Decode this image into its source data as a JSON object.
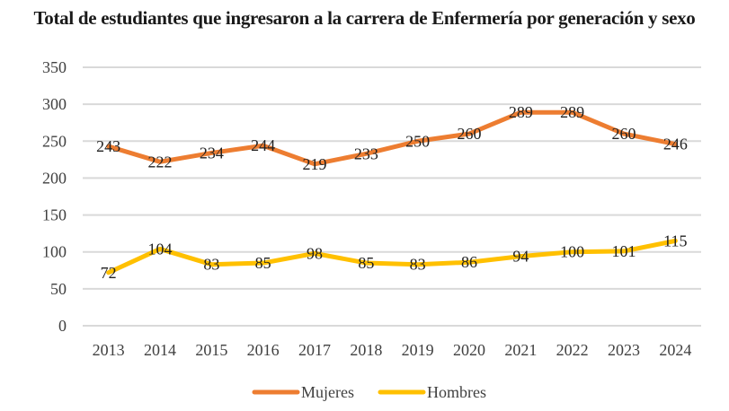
{
  "chart_data": {
    "type": "line",
    "title": "Total de estudiantes que ingresaron a la carrera de Enfermería por generación y sexo",
    "xlabel": "",
    "ylabel": "",
    "categories": [
      "2013",
      "2014",
      "2015",
      "2016",
      "2017",
      "2018",
      "2019",
      "2020",
      "2021",
      "2022",
      "2023",
      "2024"
    ],
    "ylim": [
      0,
      350
    ],
    "yticks": [
      0,
      50,
      100,
      150,
      200,
      250,
      300,
      350
    ],
    "grid": true,
    "legend_position": "bottom-center",
    "series": [
      {
        "name": "Mujeres",
        "color": "#ED7D31",
        "values": [
          243,
          222,
          234,
          244,
          219,
          233,
          250,
          260,
          289,
          289,
          260,
          246
        ]
      },
      {
        "name": "Hombres",
        "color": "#FFC000",
        "values": [
          72,
          104,
          83,
          85,
          98,
          85,
          83,
          86,
          94,
          100,
          101,
          115
        ]
      }
    ],
    "data_labels": true
  }
}
